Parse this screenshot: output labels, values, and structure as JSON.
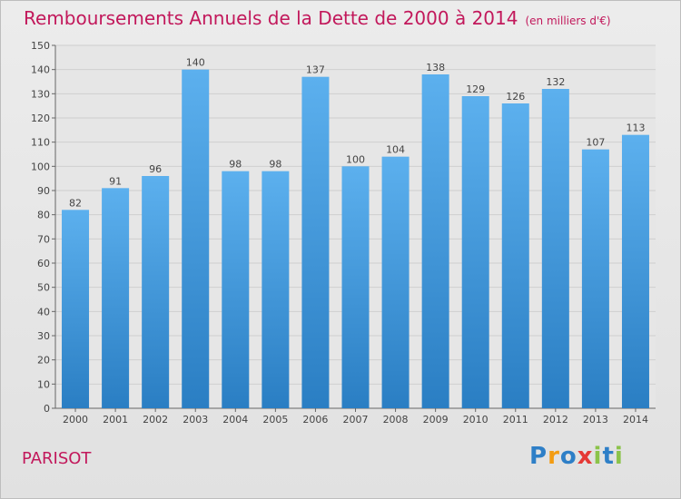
{
  "title": "Remboursements Annuels de la Dette de 2000 à 2014",
  "unit": "(en milliers d'€)",
  "town": "PARISOT",
  "logo": {
    "letters": [
      "P",
      "r",
      "o",
      "x",
      "i",
      "t",
      "i"
    ],
    "colors": [
      "#2e7fc7",
      "#f39c12",
      "#2e7fc7",
      "#e53935",
      "#8bc34a",
      "#2e7fc7",
      "#8bc34a"
    ]
  },
  "colors": {
    "bar_light": "#5cb0ee",
    "bar_dark": "#2a7ec3",
    "title": "#c2185b"
  },
  "chart_data": {
    "type": "bar",
    "title": "Remboursements Annuels de la Dette de 2000 à 2014",
    "categories": [
      "2000",
      "2001",
      "2002",
      "2003",
      "2004",
      "2005",
      "2006",
      "2007",
      "2008",
      "2009",
      "2010",
      "2011",
      "2012",
      "2013",
      "2014"
    ],
    "values": [
      82,
      91,
      96,
      140,
      98,
      98,
      137,
      100,
      104,
      138,
      129,
      126,
      132,
      107,
      113
    ],
    "yticks": [
      0,
      10,
      20,
      30,
      40,
      50,
      60,
      70,
      80,
      90,
      100,
      110,
      120,
      130,
      140,
      150
    ],
    "ylim": [
      0,
      150
    ],
    "grid": "horizontal",
    "xlabel": "",
    "ylabel": ""
  }
}
